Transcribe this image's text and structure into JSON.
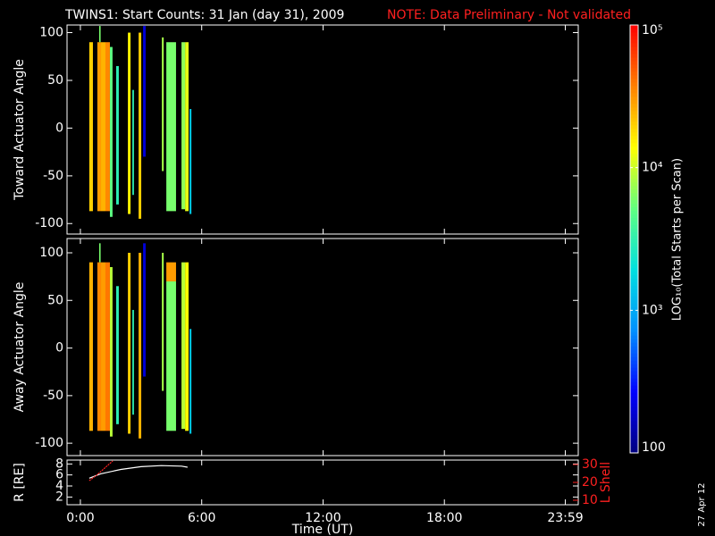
{
  "title": "TWINS1: Start Counts: 31 Jan (day  31), 2009",
  "note": "NOTE: Data Preliminary - Not validated",
  "date": "27 Apr 12",
  "colorbar": {
    "label": "LOG₁₀(Total Starts per Scan)",
    "log": true,
    "lim": [
      100,
      100000
    ],
    "ticks": [
      {
        "value": 100000,
        "label": "10⁵"
      },
      {
        "value": 10000,
        "label": "10⁴"
      },
      {
        "value": 1000,
        "label": "10³"
      },
      100
    ],
    "colors": [
      "#00007f",
      "#0000ff",
      "#0090ff",
      "#00e0e0",
      "#60ff80",
      "#ffff00",
      "#ff8000",
      "#ff0000"
    ]
  },
  "chart_data": [
    {
      "type": "heatmap",
      "ylabel": "Toward Actuator Angle",
      "xlim": [
        -0.66,
        24.62
      ],
      "ylim": [
        -111,
        108
      ],
      "yticks": [
        -100,
        -50,
        0,
        50,
        100
      ],
      "strips": [
        {
          "start": 0.44,
          "end": 0.62,
          "ymin": -87,
          "ymax": 90,
          "value": 20000
        },
        {
          "start": 0.84,
          "end": 1.02,
          "ymin": -87,
          "ymax": 90,
          "value": 30000
        },
        {
          "start": 0.93,
          "end": 1.0,
          "ymin": 90,
          "ymax": 107,
          "value": 6000
        },
        {
          "start": 1.02,
          "end": 1.24,
          "ymin": -87,
          "ymax": 90,
          "value": 25000
        },
        {
          "start": 1.24,
          "end": 1.46,
          "ymin": -87,
          "ymax": 90,
          "value": 35000
        },
        {
          "start": 1.46,
          "end": 1.59,
          "ymin": -93,
          "ymax": 85,
          "value": 5000
        },
        {
          "start": 1.77,
          "end": 1.9,
          "ymin": -80,
          "ymax": 65,
          "value": 3000
        },
        {
          "start": 2.35,
          "end": 2.48,
          "ymin": -90,
          "ymax": 100,
          "value": 15000
        },
        {
          "start": 2.57,
          "end": 2.65,
          "ymin": -70,
          "ymax": 40,
          "value": 3000
        },
        {
          "start": 2.88,
          "end": 3.01,
          "ymin": -95,
          "ymax": 100,
          "value": 20000
        },
        {
          "start": 3.1,
          "end": 3.23,
          "ymin": -30,
          "ymax": 107,
          "value": 200
        },
        {
          "start": 4.03,
          "end": 4.12,
          "ymin": -45,
          "ymax": 95,
          "value": 8000
        },
        {
          "start": 4.25,
          "end": 4.73,
          "ymin": -87,
          "ymax": 90,
          "value": 6000
        },
        {
          "start": 5.0,
          "end": 5.18,
          "ymin": -85,
          "ymax": 90,
          "value": 7000
        },
        {
          "start": 5.18,
          "end": 5.35,
          "ymin": -87,
          "ymax": 90,
          "value": 12000
        },
        {
          "start": 5.4,
          "end": 5.49,
          "ymin": -90,
          "ymax": 20,
          "value": 1500
        }
      ]
    },
    {
      "type": "heatmap",
      "ylabel": "Away Actuator Angle",
      "xlim": [
        -0.66,
        24.62
      ],
      "ylim": [
        -113,
        115
      ],
      "yticks": [
        -100,
        -50,
        0,
        50,
        100
      ],
      "strips": [
        {
          "start": 0.44,
          "end": 0.62,
          "ymin": -87,
          "ymax": 90,
          "value": 25000
        },
        {
          "start": 0.84,
          "end": 1.02,
          "ymin": -87,
          "ymax": 90,
          "value": 35000
        },
        {
          "start": 0.93,
          "end": 1.0,
          "ymin": 90,
          "ymax": 110,
          "value": 6000
        },
        {
          "start": 1.02,
          "end": 1.24,
          "ymin": -87,
          "ymax": 90,
          "value": 30000
        },
        {
          "start": 1.24,
          "end": 1.46,
          "ymin": -87,
          "ymax": 90,
          "value": 40000
        },
        {
          "start": 1.46,
          "end": 1.59,
          "ymin": -93,
          "ymax": 85,
          "value": 9000
        },
        {
          "start": 1.77,
          "end": 1.9,
          "ymin": -80,
          "ymax": 65,
          "value": 3000
        },
        {
          "start": 2.35,
          "end": 2.48,
          "ymin": -90,
          "ymax": 100,
          "value": 20000
        },
        {
          "start": 2.57,
          "end": 2.65,
          "ymin": -70,
          "ymax": 40,
          "value": 3000
        },
        {
          "start": 2.88,
          "end": 3.01,
          "ymin": -95,
          "ymax": 100,
          "value": 25000
        },
        {
          "start": 3.1,
          "end": 3.23,
          "ymin": -30,
          "ymax": 110,
          "value": 200
        },
        {
          "start": 4.03,
          "end": 4.12,
          "ymin": -45,
          "ymax": 100,
          "value": 8000
        },
        {
          "start": 4.25,
          "end": 4.73,
          "ymin": -87,
          "ymax": 70,
          "value": 6000
        },
        {
          "start": 4.25,
          "end": 4.73,
          "ymin": 70,
          "ymax": 90,
          "value": 30000
        },
        {
          "start": 5.0,
          "end": 5.18,
          "ymin": -85,
          "ymax": 90,
          "value": 9000
        },
        {
          "start": 5.18,
          "end": 5.35,
          "ymin": -87,
          "ymax": 90,
          "value": 14000
        },
        {
          "start": 5.4,
          "end": 5.49,
          "ymin": -90,
          "ymax": 20,
          "value": 1500
        }
      ]
    },
    {
      "type": "line",
      "ylabel": "R [RE]",
      "y2label": "L Shell",
      "xlabel": "Time (UT)",
      "xlim": [
        -0.66,
        24.62
      ],
      "ylim": [
        0.6,
        8.7
      ],
      "y2lim": [
        7.5,
        32.5
      ],
      "xticks": [
        {
          "value": 0,
          "label": "0:00"
        },
        {
          "value": 6,
          "label": "6:00"
        },
        {
          "value": 12,
          "label": "12:00"
        },
        {
          "value": 18,
          "label": "18:00"
        },
        {
          "value": 23.98,
          "label": "23:59"
        }
      ],
      "yticks": [
        2,
        4,
        6,
        8
      ],
      "y2ticks": [
        10,
        20,
        30
      ],
      "series": [
        {
          "color": "#ffffff",
          "x": [
            0.44,
            1,
            2,
            3,
            4,
            5,
            5.3
          ],
          "values": [
            5.4,
            6.2,
            7.0,
            7.5,
            7.7,
            7.6,
            7.4
          ]
        },
        {
          "color": "#ff2020",
          "axis": "y2",
          "x": [
            0.44,
            0.8,
            1.2,
            1.6
          ],
          "values": [
            21,
            24,
            28,
            32
          ]
        }
      ]
    }
  ]
}
